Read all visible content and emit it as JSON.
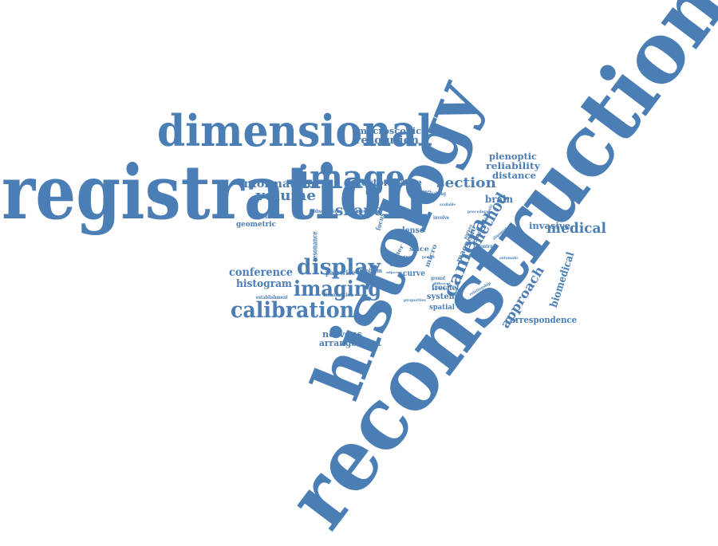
{
  "color": "#4a7eb5",
  "words": [
    {
      "id": "reconstruction",
      "text": "reconstruction"
    },
    {
      "id": "registration",
      "text": "registration"
    },
    {
      "id": "histology",
      "text": "histology"
    },
    {
      "id": "dimensional",
      "text": "dimensional"
    },
    {
      "id": "image",
      "text": "image"
    },
    {
      "id": "calibration",
      "text": "calibration"
    },
    {
      "id": "display",
      "text": "display"
    },
    {
      "id": "imaging",
      "text": "imaging"
    },
    {
      "id": "camera",
      "text": "camera"
    },
    {
      "id": "method",
      "text": "method"
    },
    {
      "id": "section",
      "text": "section"
    },
    {
      "id": "shape",
      "text": "shape"
    },
    {
      "id": "volume",
      "text": "volume"
    },
    {
      "id": "medical",
      "text": "medical"
    },
    {
      "id": "approach",
      "text": "approach"
    },
    {
      "id": "resolution",
      "text": "resolution"
    },
    {
      "id": "macroscopic",
      "text": "macroscopic"
    },
    {
      "id": "information",
      "text": "information"
    },
    {
      "id": "detector",
      "text": "detector"
    },
    {
      "id": "tissue",
      "text": "tissue"
    },
    {
      "id": "plenoptic",
      "text": "plenoptic"
    },
    {
      "id": "reliability",
      "text": "reliability"
    },
    {
      "id": "distance",
      "text": "distance"
    },
    {
      "id": "brain",
      "text": "brain"
    },
    {
      "id": "invasive",
      "text": "invasive"
    },
    {
      "id": "biomedical",
      "text": "biomedical"
    },
    {
      "id": "conference",
      "text": "conference"
    },
    {
      "id": "histogram",
      "text": "histogram"
    },
    {
      "id": "correspondence",
      "text": "correspondence"
    },
    {
      "id": "nervous",
      "text": "nervous"
    },
    {
      "id": "arrangement",
      "text": "arrangement"
    },
    {
      "id": "element",
      "text": "element"
    },
    {
      "id": "geometric",
      "text": "geometric"
    },
    {
      "id": "system",
      "text": "system"
    },
    {
      "id": "spatial",
      "text": "spatial"
    },
    {
      "id": "frechet",
      "text": "frechet"
    },
    {
      "id": "curve",
      "text": "curve"
    },
    {
      "id": "lense",
      "text": "lense"
    },
    {
      "id": "slice",
      "text": "slice"
    },
    {
      "id": "micro",
      "text": "micro"
    },
    {
      "id": "magnetic",
      "text": "magnetic"
    },
    {
      "id": "resonance",
      "text": "resonance"
    },
    {
      "id": "pairwise",
      "text": "pairwise"
    },
    {
      "id": "problem",
      "text": "problem"
    },
    {
      "id": "focus",
      "text": "focus"
    },
    {
      "id": "corner",
      "text": "corner"
    },
    {
      "id": "knowledge",
      "text": "knowledge"
    },
    {
      "id": "observation",
      "text": "observation"
    },
    {
      "id": "visualisation",
      "text": "visualisation"
    },
    {
      "id": "establishment",
      "text": "establishment"
    },
    {
      "id": "underlying",
      "text": "underlying"
    },
    {
      "id": "involve",
      "text": "involve"
    },
    {
      "id": "available",
      "text": "available"
    },
    {
      "id": "survey",
      "text": "survey"
    },
    {
      "id": "possible",
      "text": "possible"
    },
    {
      "id": "contrast",
      "text": "contrast"
    },
    {
      "id": "relationship",
      "text": "relationship"
    },
    {
      "id": "alignment",
      "text": "alignment"
    },
    {
      "id": "automatic",
      "text": "automatic"
    },
    {
      "id": "procedural",
      "text": "procedural"
    },
    {
      "id": "properties",
      "text": "properties"
    },
    {
      "id": "ground",
      "text": "ground"
    },
    {
      "id": "permit",
      "text": "permit"
    },
    {
      "id": "structure",
      "text": "structure"
    },
    {
      "id": "original",
      "text": "original"
    },
    {
      "id": "adjacent",
      "text": "adjacent"
    },
    {
      "id": "different",
      "text": "different"
    },
    {
      "id": "cellular",
      "text": "cellular"
    },
    {
      "id": "complexity",
      "text": "complexity"
    }
  ]
}
